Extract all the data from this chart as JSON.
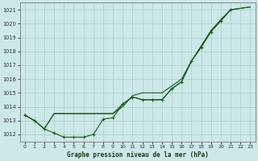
{
  "background_color": "#cce8e8",
  "grid_color": "#aacccc",
  "line_color": "#1a5c1a",
  "title": "Graphe pression niveau de la mer (hPa)",
  "xlim": [
    -0.5,
    23.5
  ],
  "ylim": [
    1011.5,
    1021.5
  ],
  "yticks": [
    1012,
    1013,
    1014,
    1015,
    1016,
    1017,
    1018,
    1019,
    1020,
    1021
  ],
  "xticks": [
    0,
    1,
    2,
    3,
    4,
    5,
    6,
    7,
    8,
    9,
    10,
    11,
    12,
    13,
    14,
    15,
    16,
    17,
    18,
    19,
    20,
    21,
    22,
    23
  ],
  "curve1_x": [
    0,
    1,
    2,
    3,
    4,
    5,
    6,
    7,
    8,
    9,
    10,
    11,
    12,
    13,
    14,
    15,
    16,
    17,
    18,
    19,
    20,
    21
  ],
  "curve1_y": [
    1013.4,
    1013.0,
    1012.4,
    1012.1,
    1011.8,
    1011.8,
    1011.8,
    1012.0,
    1013.1,
    1013.2,
    1014.2,
    1014.7,
    1014.5,
    1014.5,
    1014.5,
    1015.3,
    1015.8,
    1017.3,
    1018.3,
    1019.4,
    1020.2,
    1021.0
  ],
  "curve2_x": [
    0,
    1,
    2,
    3,
    4,
    9,
    10,
    11,
    12,
    13,
    14,
    15,
    16,
    17,
    18,
    19,
    20,
    21,
    22,
    23
  ],
  "curve2_y": [
    1013.4,
    1013.0,
    1012.4,
    1013.5,
    1013.5,
    1013.5,
    1014.0,
    1014.8,
    1015.0,
    1015.0,
    1015.0,
    1015.5,
    1016.0,
    1017.3,
    1018.4,
    1019.5,
    1020.3,
    1021.0,
    1021.1,
    1021.2
  ],
  "curve3_x": [
    0,
    1,
    2,
    3,
    4,
    5,
    6,
    7,
    8,
    9,
    10,
    11,
    12,
    13,
    14,
    15,
    16,
    17,
    18,
    19,
    20,
    21,
    22,
    23
  ],
  "curve3_y": [
    1013.4,
    1013.0,
    1012.4,
    1013.5,
    1013.5,
    1013.5,
    1013.5,
    1013.5,
    1013.5,
    1013.5,
    1014.2,
    1014.7,
    1014.5,
    1014.5,
    1014.5,
    1015.3,
    1015.8,
    1017.3,
    1018.3,
    1019.5,
    1020.2,
    1021.0,
    1021.1,
    1021.2
  ]
}
